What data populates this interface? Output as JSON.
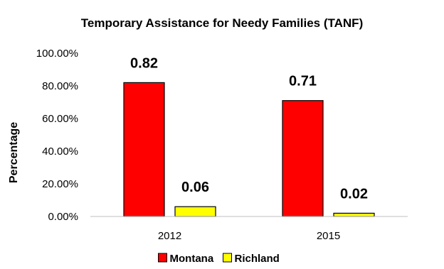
{
  "chart_data": {
    "type": "bar",
    "title": "Temporary Assistance for Needy Families (TANF)",
    "ylabel": "Percentage",
    "xlabel": "",
    "categories": [
      "2012",
      "2015"
    ],
    "ylim": [
      0,
      100
    ],
    "yticks": [
      "0.00%",
      "20.00%",
      "40.00%",
      "60.00%",
      "80.00%",
      "100.00%"
    ],
    "series": [
      {
        "name": "Montana",
        "values": [
          82,
          71
        ],
        "labels": [
          "0.82",
          "0.71"
        ],
        "color": "#FF0000"
      },
      {
        "name": "Richland",
        "values": [
          6,
          2
        ],
        "labels": [
          "0.06",
          "0.02"
        ],
        "color": "#FFFF00"
      }
    ],
    "grid": false,
    "legend": "bottom"
  }
}
